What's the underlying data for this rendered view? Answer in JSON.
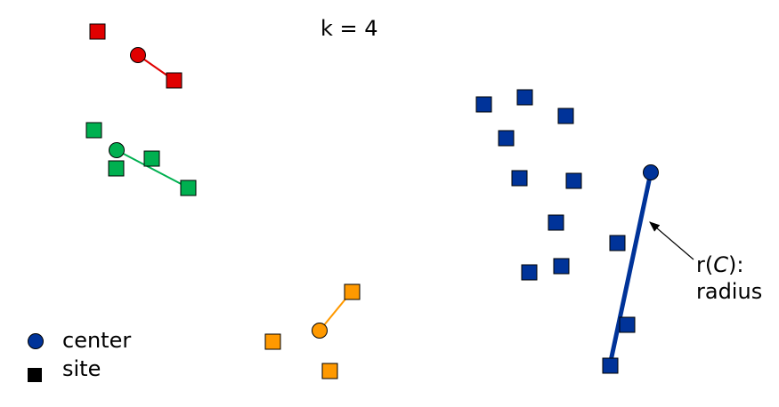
{
  "title_label": "k = 4",
  "legend": {
    "center_label": "center",
    "site_label": "site",
    "center_color": "#003399",
    "site_color": "#000000"
  },
  "annotation": {
    "radius_prefix": "r(",
    "radius_var": "C",
    "radius_suffix": "):",
    "radius_word": "radius"
  },
  "colors": {
    "red": "#e00000",
    "green": "#00b050",
    "orange": "#ff9900",
    "blue": "#003399"
  }
}
